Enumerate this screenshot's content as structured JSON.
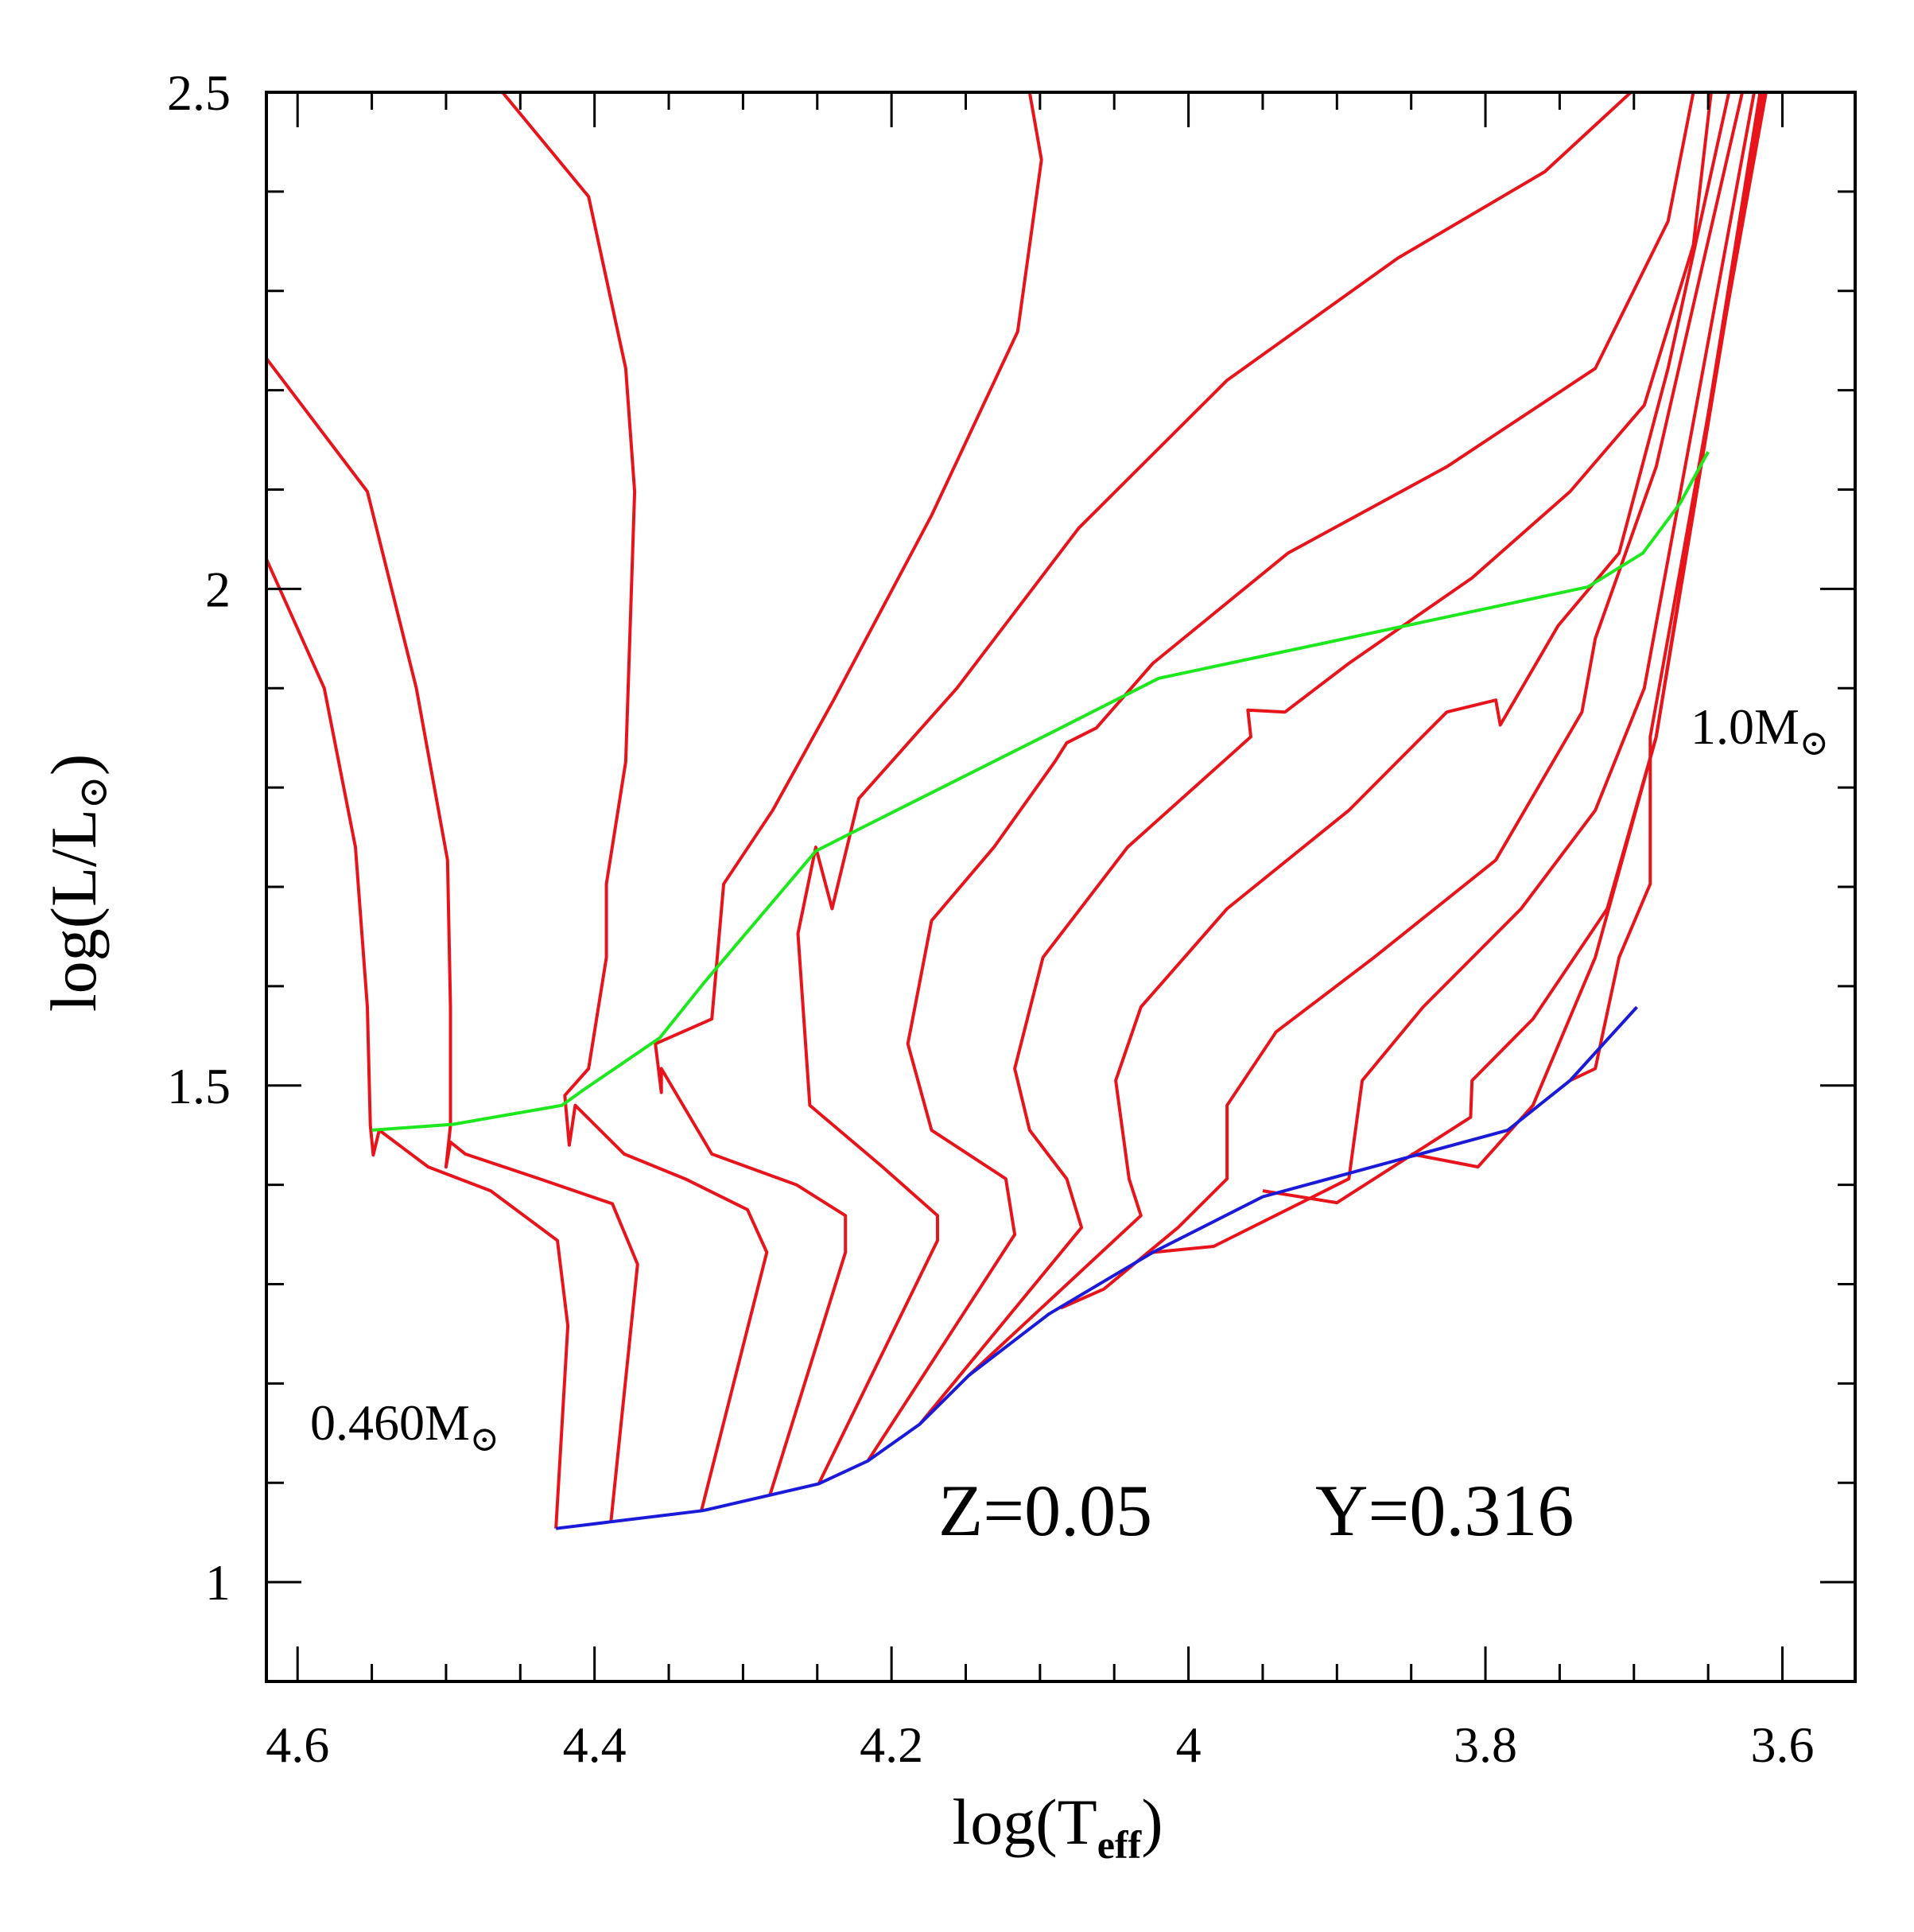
{
  "chart_data": {
    "type": "line",
    "xlabel": "log(T",
    "xlabel_sub": "eff",
    "xlabel_close": ")",
    "ylabel": "log(L/L",
    "ylabel_sub": "⊙",
    "ylabel_close": ")",
    "xlim": [
      4.621,
      3.551
    ],
    "ylim": [
      0.9,
      2.5
    ],
    "x_reversed": true,
    "grid": false,
    "x_ticks": [
      4.6,
      4.4,
      4.2,
      4,
      3.8,
      3.6
    ],
    "x_tick_labels": [
      "4.6",
      "4.4",
      "4.2",
      "4",
      "3.8",
      "3.6"
    ],
    "y_ticks": [
      1,
      1.5,
      2,
      2.5
    ],
    "y_tick_labels": [
      "1",
      "1.5",
      "2",
      "2.5"
    ],
    "annotations": {
      "low_mass": "0.460M",
      "high_mass": "1.0M",
      "sun_symbol": "⊙",
      "metallicity": "Z=0.05",
      "helium": "Y=0.316"
    },
    "colors": {
      "tracks": "#e8141c",
      "zams": "#1a1ad8",
      "green_line": "#1de81d",
      "axes": "#000000"
    },
    "tracks": [
      [
        [
          4.426,
          1.054
        ],
        [
          4.418,
          1.258
        ],
        [
          4.425,
          1.344
        ],
        [
          4.47,
          1.394
        ],
        [
          4.512,
          1.418
        ],
        [
          4.545,
          1.455
        ],
        [
          4.549,
          1.43
        ],
        [
          4.551,
          1.46
        ],
        [
          4.553,
          1.579
        ],
        [
          4.561,
          1.74
        ],
        [
          4.582,
          1.9
        ],
        [
          4.621,
          2.03
        ]
      ],
      [
        [
          4.389,
          1.06
        ],
        [
          4.371,
          1.32
        ],
        [
          4.388,
          1.381
        ],
        [
          4.437,
          1.406
        ],
        [
          4.487,
          1.431
        ],
        [
          4.497,
          1.443
        ],
        [
          4.5,
          1.418
        ],
        [
          4.497,
          1.46
        ],
        [
          4.497,
          1.579
        ],
        [
          4.499,
          1.727
        ],
        [
          4.52,
          1.9
        ],
        [
          4.553,
          2.098
        ],
        [
          4.621,
          2.232
        ]
      ],
      [
        [
          4.328,
          1.072
        ],
        [
          4.284,
          1.332
        ],
        [
          4.297,
          1.375
        ],
        [
          4.339,
          1.406
        ],
        [
          4.38,
          1.431
        ],
        [
          4.413,
          1.48
        ],
        [
          4.417,
          1.44
        ],
        [
          4.42,
          1.49
        ],
        [
          4.404,
          1.517
        ],
        [
          4.392,
          1.629
        ],
        [
          4.392,
          1.703
        ],
        [
          4.379,
          1.826
        ],
        [
          4.373,
          2.098
        ],
        [
          4.379,
          2.222
        ],
        [
          4.404,
          2.395
        ],
        [
          4.462,
          2.5
        ]
      ],
      [
        [
          4.282,
          1.087
        ],
        [
          4.231,
          1.332
        ],
        [
          4.231,
          1.369
        ],
        [
          4.264,
          1.4
        ],
        [
          4.321,
          1.431
        ],
        [
          4.355,
          1.517
        ],
        [
          4.355,
          1.493
        ],
        [
          4.359,
          1.542
        ],
        [
          4.321,
          1.567
        ],
        [
          4.313,
          1.703
        ],
        [
          4.28,
          1.777
        ],
        [
          4.239,
          1.888
        ],
        [
          4.173,
          2.074
        ],
        [
          4.115,
          2.259
        ],
        [
          4.099,
          2.432
        ],
        [
          4.107,
          2.5
        ]
      ],
      [
        [
          4.249,
          1.099
        ],
        [
          4.169,
          1.344
        ],
        [
          4.169,
          1.369
        ],
        [
          4.206,
          1.418
        ],
        [
          4.255,
          1.48
        ],
        [
          4.263,
          1.653
        ],
        [
          4.251,
          1.74
        ],
        [
          4.24,
          1.678
        ],
        [
          4.222,
          1.789
        ],
        [
          4.156,
          1.9
        ],
        [
          4.074,
          2.061
        ],
        [
          3.974,
          2.21
        ],
        [
          3.859,
          2.333
        ],
        [
          3.76,
          2.42
        ],
        [
          3.702,
          2.5
        ]
      ],
      [
        [
          4.216,
          1.122
        ],
        [
          4.117,
          1.35
        ],
        [
          4.123,
          1.406
        ],
        [
          4.173,
          1.455
        ],
        [
          4.189,
          1.542
        ],
        [
          4.173,
          1.666
        ],
        [
          4.131,
          1.74
        ],
        [
          4.09,
          1.826
        ],
        [
          4.082,
          1.845
        ],
        [
          4.062,
          1.86
        ],
        [
          4.024,
          1.925
        ],
        [
          3.933,
          2.036
        ],
        [
          3.826,
          2.123
        ],
        [
          3.726,
          2.222
        ],
        [
          3.677,
          2.37
        ],
        [
          3.66,
          2.5
        ]
      ],
      [
        [
          4.181,
          1.159
        ],
        [
          4.072,
          1.357
        ],
        [
          4.082,
          1.406
        ],
        [
          4.107,
          1.455
        ],
        [
          4.117,
          1.517
        ],
        [
          4.098,
          1.629
        ],
        [
          4.041,
          1.74
        ],
        [
          3.958,
          1.851
        ],
        [
          3.96,
          1.878
        ],
        [
          3.935,
          1.876
        ],
        [
          3.892,
          1.925
        ],
        [
          3.809,
          2.011
        ],
        [
          3.743,
          2.098
        ],
        [
          3.693,
          2.185
        ],
        [
          3.66,
          2.346
        ],
        [
          3.648,
          2.5
        ]
      ],
      [
        [
          4.148,
          1.208
        ],
        [
          4.032,
          1.369
        ],
        [
          4.04,
          1.406
        ],
        [
          4.049,
          1.505
        ],
        [
          4.032,
          1.579
        ],
        [
          3.974,
          1.678
        ],
        [
          3.892,
          1.777
        ],
        [
          3.826,
          1.876
        ],
        [
          3.793,
          1.888
        ],
        [
          3.79,
          1.863
        ],
        [
          3.751,
          1.963
        ],
        [
          3.71,
          2.036
        ],
        [
          3.677,
          2.222
        ],
        [
          3.636,
          2.5
        ]
      ],
      [
        [
          4.086,
          1.276
        ],
        [
          4.057,
          1.295
        ],
        [
          4.007,
          1.357
        ],
        [
          3.974,
          1.406
        ],
        [
          3.974,
          1.48
        ],
        [
          3.941,
          1.554
        ],
        [
          3.875,
          1.629
        ],
        [
          3.793,
          1.727
        ],
        [
          3.735,
          1.876
        ],
        [
          3.726,
          1.95
        ],
        [
          3.685,
          2.123
        ],
        [
          3.627,
          2.5
        ]
      ],
      [
        [
          4.024,
          1.332
        ],
        [
          3.983,
          1.338
        ],
        [
          3.892,
          1.406
        ],
        [
          3.883,
          1.505
        ],
        [
          3.842,
          1.579
        ],
        [
          3.776,
          1.678
        ],
        [
          3.726,
          1.777
        ],
        [
          3.693,
          1.9
        ],
        [
          3.619,
          2.5
        ]
      ],
      [
        [
          3.95,
          1.394
        ],
        [
          3.9,
          1.382
        ],
        [
          3.81,
          1.468
        ],
        [
          3.809,
          1.505
        ],
        [
          3.768,
          1.567
        ],
        [
          3.718,
          1.678
        ],
        [
          3.685,
          1.851
        ],
        [
          3.615,
          2.5
        ]
      ],
      [
        [
          3.85,
          1.431
        ],
        [
          3.805,
          1.418
        ],
        [
          3.768,
          1.48
        ],
        [
          3.726,
          1.629
        ],
        [
          3.685,
          1.851
        ],
        [
          3.613,
          2.5
        ]
      ],
      [
        [
          3.743,
          1.505
        ],
        [
          3.726,
          1.517
        ],
        [
          3.71,
          1.629
        ],
        [
          3.689,
          1.703
        ],
        [
          3.689,
          1.851
        ],
        [
          3.611,
          2.5
        ]
      ]
    ],
    "zams": [
      [
        4.426,
        1.054
      ],
      [
        4.327,
        1.072
      ],
      [
        4.249,
        1.099
      ],
      [
        4.216,
        1.122
      ],
      [
        4.181,
        1.159
      ],
      [
        4.148,
        1.208
      ],
      [
        4.094,
        1.27
      ],
      [
        4.024,
        1.332
      ],
      [
        3.95,
        1.388
      ],
      [
        3.876,
        1.418
      ],
      [
        3.785,
        1.455
      ],
      [
        3.743,
        1.505
      ],
      [
        3.698,
        1.579
      ]
    ],
    "green_line": [
      [
        4.55,
        1.455
      ],
      [
        4.495,
        1.461
      ],
      [
        4.422,
        1.48
      ],
      [
        4.408,
        1.495
      ],
      [
        4.356,
        1.548
      ],
      [
        4.326,
        1.604
      ],
      [
        4.251,
        1.736
      ],
      [
        4.222,
        1.758
      ],
      [
        4.09,
        1.857
      ],
      [
        4.02,
        1.91
      ],
      [
        3.731,
        2.002
      ],
      [
        3.694,
        2.036
      ],
      [
        3.669,
        2.086
      ],
      [
        3.65,
        2.138
      ]
    ]
  }
}
